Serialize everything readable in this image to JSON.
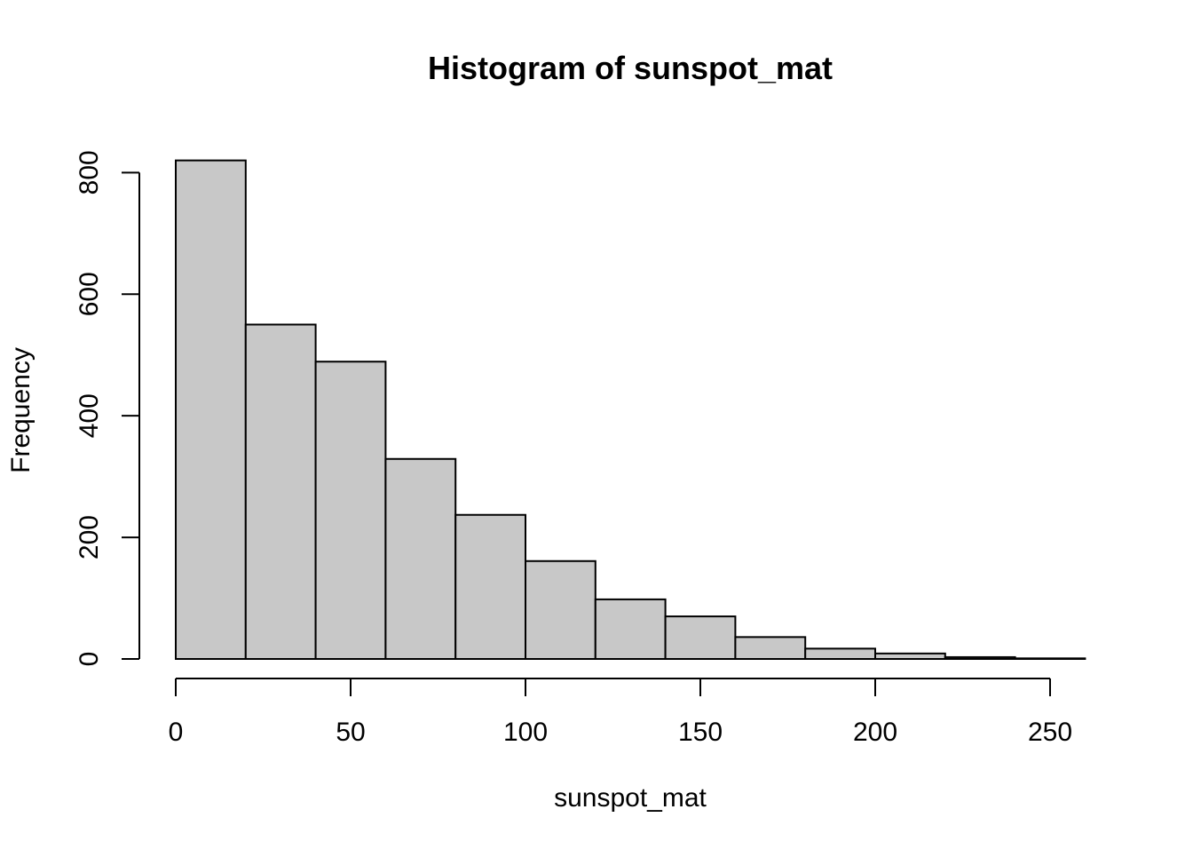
{
  "chart_data": {
    "type": "bar",
    "title": "Histogram of sunspot_mat",
    "xlabel": "sunspot_mat",
    "ylabel": "Frequency",
    "bin_edges": [
      0,
      20,
      40,
      60,
      80,
      100,
      120,
      140,
      160,
      180,
      200,
      220,
      240,
      260
    ],
    "values": [
      820,
      550,
      489,
      329,
      237,
      161,
      98,
      70,
      36,
      17,
      9,
      3,
      1
    ],
    "xlim": [
      0,
      260
    ],
    "ylim": [
      0,
      820
    ],
    "x_ticks": [
      0,
      50,
      100,
      150,
      200,
      250
    ],
    "y_ticks": [
      0,
      200,
      400,
      600,
      800
    ],
    "grid": false,
    "bar_fill": "#c8c8c8",
    "bar_stroke": "#000000"
  }
}
